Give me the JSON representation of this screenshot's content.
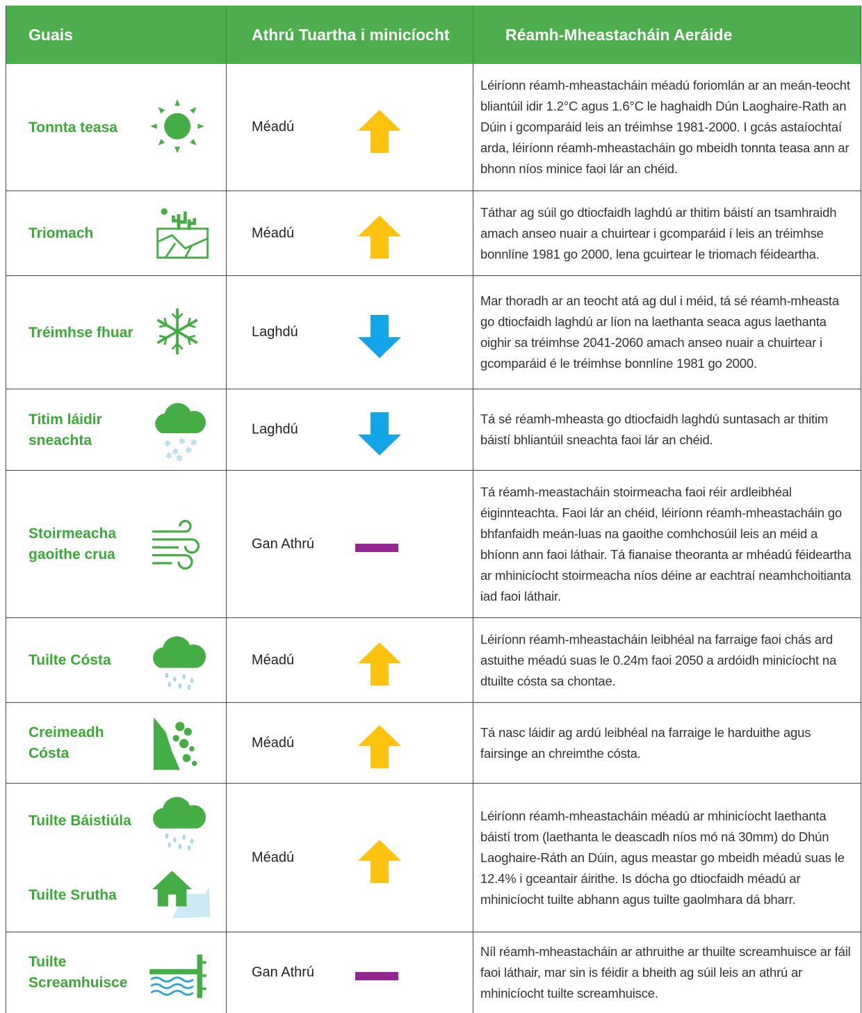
{
  "header": {
    "columns": [
      "Guais",
      "Athrú Tuartha i minicíocht",
      "Réamh-Mheastacháin Aeráide"
    ]
  },
  "rows": [
    {
      "hazards": [
        "Tonnta teasa"
      ],
      "trend": "Méadú",
      "description": "Léiríonn réamh-mheastacháin méadú foriomlán ar an meán-teocht bliantúil idir 1.2°C agus 1.6°C le haghaidh Dún Laoghaire-Rath an Dúin i gcomparáid leis an tréimhse 1981-2000. I gcás astaíochtaí arda, léiríonn réamh-mheastacháin go mbeidh tonnta teasa ann ar bhonn níos minice faoi lár an chéid."
    },
    {
      "hazards": [
        "Triomach"
      ],
      "trend": "Méadú",
      "description": "Táthar ag súil go dtiocfaidh laghdú ar thitim báistí an tsamhraidh amach anseo nuair a chuirtear i gcomparáid í leis an tréimhse bonnlíne 1981 go 2000, lena gcuirtear le triomach féideartha."
    },
    {
      "hazards": [
        "Tréimhse fhuar"
      ],
      "trend": "Laghdú",
      "description": "Mar thoradh ar an teocht atá ag dul i méid, tá sé réamh-mheasta go dtiocfaidh laghdú ar líon na laethanta seaca agus laethanta oighir sa tréimhse 2041-2060 amach anseo nuair a chuirtear i gcomparáid é le tréimhse bonnlíne 1981 go 2000."
    },
    {
      "hazards": [
        "Titim láidir sneachta"
      ],
      "trend": "Laghdú",
      "description": "Tá sé réamh-mheasta go dtiocfaidh laghdú suntasach ar thitim báistí bhliantúil sneachta faoi lár an chéid."
    },
    {
      "hazards": [
        "Stoirmeacha gaoithe crua"
      ],
      "trend": "Gan Athrú",
      "description": "Tá réamh-meastacháin stoirmeacha faoi réir ardleibhéal éiginnteachta. Faoi lár an chéid, léiríonn réamh-mheastacháin go bhfanfaidh meán-luas na gaoithe comhchosúil leis an méid a bhíonn ann faoi láthair. Tá fianaise theoranta ar mhéadú féideartha ar mhinicíocht stoirmeacha níos déine ar eachtraí neamhchoitianta iad faoi láthair."
    },
    {
      "hazards": [
        "Tuilte Cósta"
      ],
      "trend": "Méadú",
      "description": "Léiríonn réamh-mheastacháin leibhéal na farraige faoi chás ard astuithe méadú suas le 0.24m faoi 2050 a ardóidh minicíocht na dtuilte cósta sa chontae."
    },
    {
      "hazards": [
        "Creimeadh Cósta"
      ],
      "trend": "Méadú",
      "description": "Tá nasc láidir ag ardú leibhéal na farraige le harduithe agus fairsinge an chreimthe cósta."
    },
    {
      "hazards": [
        "Tuilte Báistiúla",
        "Tuilte Srutha"
      ],
      "trend": "Méadú",
      "description": "Léiríonn réamh-mheastacháin méadú ar mhinicíocht laethanta báistí trom (laethanta le deascadh níos mó ná 30mm) do Dhún Laoghaire-Ráth an Dúin, agus meastar go mbeidh méadú suas le 12.4% i gceantair áirithe. Is dócha go dtiocfaidh méadú ar mhinicíocht tuilte abhann agus tuilte gaolmhara dá bharr."
    },
    {
      "hazards": [
        "Tuilte Screamhuisce"
      ],
      "trend": "Gan Athrú",
      "description": "Níl réamh-mheastacháin ar athruithe ar thuilte screamhuisce ar fáil faoi láthair, mar sin is féidir a bheith ag súil leis an athrú ar mhinicíocht tuilte screamhuisce."
    }
  ]
}
